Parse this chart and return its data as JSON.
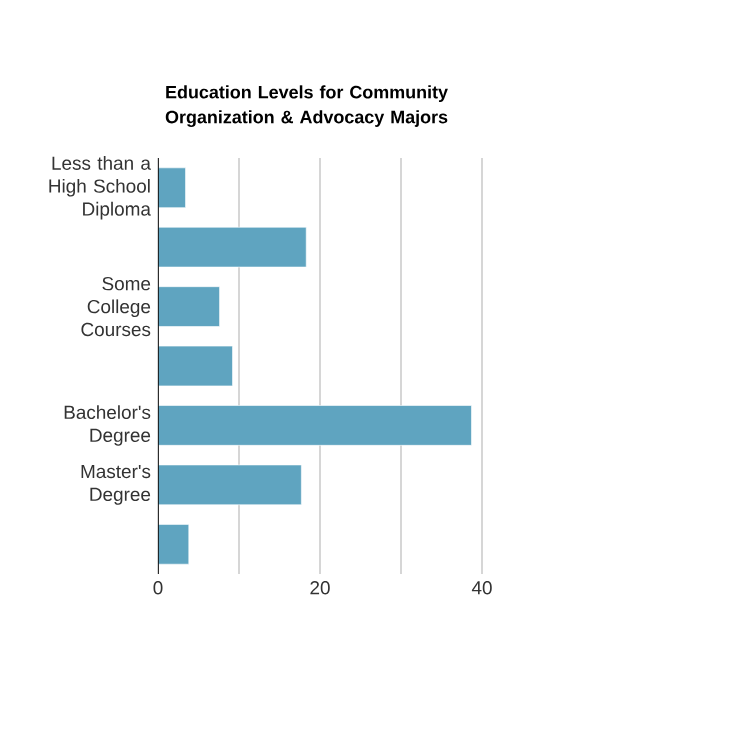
{
  "chart_data": {
    "type": "bar",
    "orientation": "horizontal",
    "title": "Education Levels for Community Organization & Advocacy Majors",
    "categories": [
      "Less than a High School Diploma",
      null,
      "Some College Courses",
      null,
      "Bachelor's Degree",
      "Master's Degree",
      null
    ],
    "values": [
      3.4,
      18.3,
      7.6,
      9.2,
      38.7,
      17.7,
      3.8
    ],
    "color": "#5fa4c0",
    "xlim": [
      0,
      40
    ],
    "xticks": [
      0,
      {
        "value": 10,
        "label": null
      },
      20,
      {
        "value": 30,
        "label": null
      },
      40
    ],
    "grid": "x"
  }
}
